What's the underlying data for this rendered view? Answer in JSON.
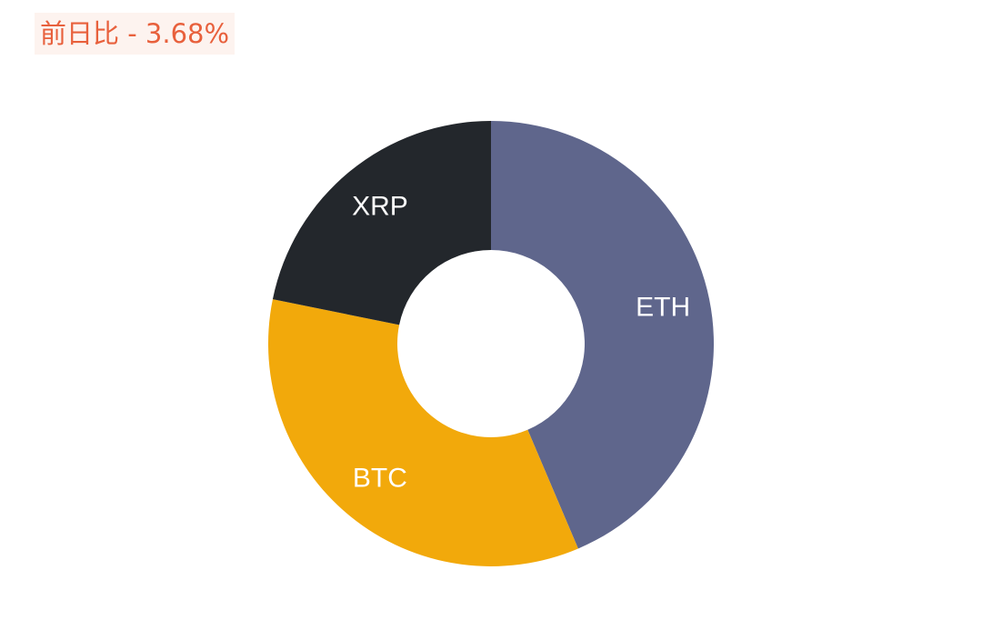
{
  "header": {
    "label": "前日比",
    "separator": " - ",
    "change": "3.68%"
  },
  "chart_data": {
    "type": "pie",
    "title": "",
    "donut": true,
    "categories": [
      "ETH",
      "BTC",
      "XRP"
    ],
    "values": [
      43.6,
      34.6,
      21.8
    ],
    "unit": "%",
    "colors": {
      "ETH": "#5f668c",
      "BTC": "#f2a90b",
      "XRP": "#23272c"
    },
    "start_angle": "top, clockwise"
  }
}
